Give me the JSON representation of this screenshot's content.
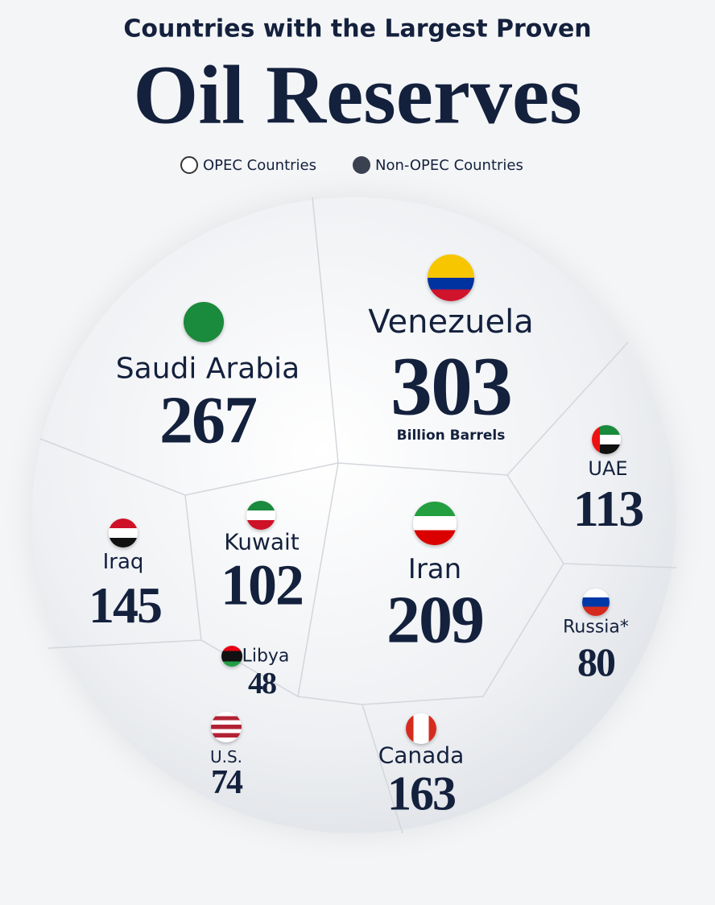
{
  "header": {
    "subtitle": "Countries with the Largest Proven",
    "title": "Oil Reserves"
  },
  "legend": [
    "OPEC Countries",
    "Non-OPEC Countries"
  ],
  "unit": "Billion Barrels",
  "countries": [
    {
      "name": "Venezuela",
      "value": 303
    },
    {
      "name": "Saudi Arabia",
      "value": 267
    },
    {
      "name": "UAE",
      "value": 113
    },
    {
      "name": "Iraq",
      "value": 145
    },
    {
      "name": "Kuwait",
      "value": 102
    },
    {
      "name": "Iran",
      "value": 209
    },
    {
      "name": "Russia*",
      "value": 80
    },
    {
      "name": "Libya",
      "value": 48
    },
    {
      "name": "U.S.",
      "value": 74
    },
    {
      "name": "Canada",
      "value": 163
    }
  ]
}
